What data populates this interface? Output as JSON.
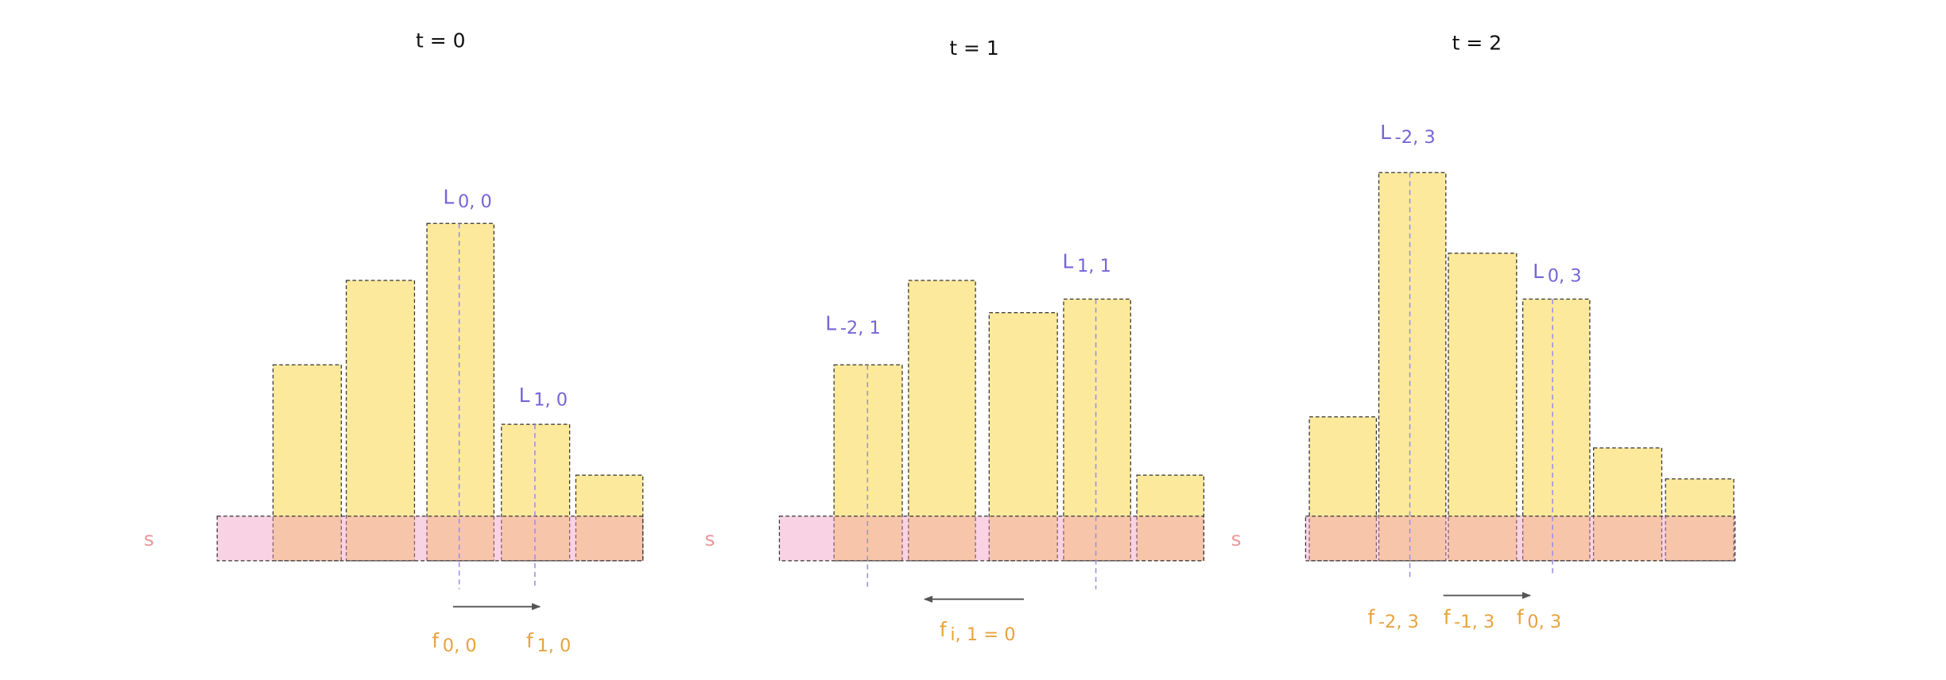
{
  "panels": [
    {
      "title": "t = 0",
      "s": "s",
      "labels": [
        {
          "main": "L",
          "sub": "0, 0"
        },
        {
          "main": "L",
          "sub": "1, 0"
        }
      ],
      "f": [
        {
          "main": "f",
          "sub": "0, 0"
        },
        {
          "main": "f",
          "sub": "1, 0"
        }
      ]
    },
    {
      "title": "t = 1",
      "s": "s",
      "labels": [
        {
          "main": "L",
          "sub": "-2, 1"
        },
        {
          "main": "L",
          "sub": "1, 1"
        }
      ],
      "f": [
        {
          "main": "f",
          "sub": "i, 1 = 0"
        }
      ]
    },
    {
      "title": "t = 2",
      "s": "s",
      "labels": [
        {
          "main": "L",
          "sub": "-2, 3"
        },
        {
          "main": "L",
          "sub": "0, 3"
        }
      ],
      "f": [
        {
          "main": "f",
          "sub": "-2, 3"
        },
        {
          "main": "f",
          "sub": "-1, 3"
        },
        {
          "main": "f",
          "sub": "0, 3"
        }
      ]
    }
  ]
}
